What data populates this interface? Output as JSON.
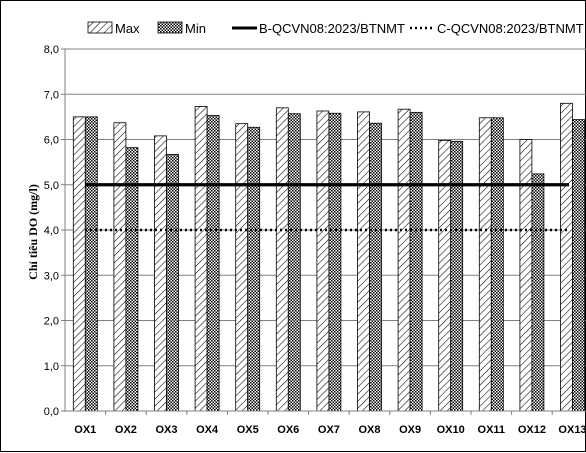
{
  "chart_data": {
    "type": "bar",
    "categories": [
      "OX1",
      "OX2",
      "OX3",
      "OX4",
      "OX5",
      "OX6",
      "OX7",
      "OX8",
      "OX9",
      "OX10",
      "OX11",
      "OX12",
      "OX13"
    ],
    "series": [
      {
        "name": "Max",
        "values": [
          6.5,
          6.37,
          6.08,
          6.73,
          6.35,
          6.7,
          6.63,
          6.61,
          6.67,
          5.98,
          6.48,
          6.0,
          6.8
        ]
      },
      {
        "name": "Min",
        "values": [
          6.5,
          5.82,
          5.67,
          6.53,
          6.27,
          6.57,
          6.58,
          6.36,
          6.6,
          5.96,
          6.48,
          5.24,
          6.44
        ]
      }
    ],
    "reference_lines": [
      {
        "name": "B-QCVN08:2023/BTNMT",
        "value": 5.0,
        "style": "solid"
      },
      {
        "name": "C-QCVN08:2023/BTNMT",
        "value": 4.0,
        "style": "dotted"
      }
    ],
    "ylabel": "Chỉ tiêu DO (mg/l)",
    "ylim": [
      0,
      8
    ],
    "yticks": [
      "0,0",
      "1,0",
      "2,0",
      "3,0",
      "4,0",
      "5,0",
      "6,0",
      "7,0",
      "8,0"
    ],
    "grid": true,
    "legend_position": "top"
  },
  "colors": {
    "axis": "#808080",
    "grid": "#808080",
    "bar_outline": "#000000",
    "reference_line": "#000000"
  }
}
